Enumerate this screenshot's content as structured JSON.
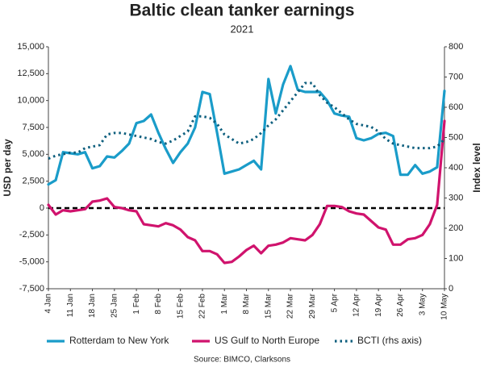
{
  "chart_data": {
    "type": "line",
    "title": "Baltic clean tanker earnings",
    "subtitle": "2021",
    "y_label": "USD per day",
    "y2_label": "Index level",
    "source": "Source: BIMCO, Clarksons",
    "categories": [
      "4 Jan",
      null,
      null,
      "11 Jan",
      null,
      null,
      "18 Jan",
      null,
      null,
      "25 Jan",
      null,
      null,
      "1 Feb",
      null,
      null,
      "8 Feb",
      null,
      null,
      "15 Feb",
      null,
      null,
      "22 Feb",
      null,
      null,
      "1 Mar",
      null,
      null,
      "8 Mar",
      null,
      null,
      "15 Mar",
      null,
      null,
      "22 Mar",
      null,
      null,
      "29 Mar",
      null,
      null,
      "5 Apr",
      null,
      null,
      "12 Apr",
      null,
      null,
      "19 Apr",
      null,
      null,
      "26 Apr",
      null,
      null,
      "3 May",
      null,
      null,
      "10 May"
    ],
    "series": [
      {
        "name": "Rotterdam to New York",
        "color": "#1a9cc9",
        "style": "solid",
        "axis": "y",
        "values": [
          2200,
          2600,
          5200,
          5100,
          5000,
          5200,
          3700,
          3900,
          4800,
          4700,
          5300,
          6000,
          7900,
          8100,
          8700,
          7000,
          5500,
          4200,
          5200,
          6000,
          7500,
          10800,
          10600,
          7000,
          3200,
          3400,
          3600,
          4000,
          4400,
          3600,
          12000,
          8800,
          11500,
          13200,
          11000,
          10800,
          10800,
          10800,
          10000,
          8800,
          8600,
          8500,
          6500,
          6300,
          6500,
          6900,
          7000,
          6700,
          3100,
          3100,
          4000,
          3200,
          3400,
          3800,
          10900
        ]
      },
      {
        "name": "US Gulf to North Europe",
        "color": "#d0136d",
        "style": "solid",
        "axis": "y",
        "values": [
          300,
          -600,
          -200,
          -300,
          -200,
          -100,
          600,
          700,
          900,
          100,
          0,
          -200,
          -300,
          -1500,
          -1600,
          -1700,
          -1400,
          -1600,
          -2000,
          -2700,
          -3000,
          -4000,
          -4000,
          -4300,
          -5100,
          -5000,
          -4500,
          -3900,
          -3500,
          -4200,
          -3500,
          -3400,
          -3200,
          -2800,
          -2900,
          -3000,
          -2500,
          -1500,
          200,
          200,
          100,
          -300,
          -500,
          -600,
          -1200,
          -1800,
          -2000,
          -3400,
          -3400,
          -2900,
          -2800,
          -2500,
          -1500,
          300,
          8100
        ]
      },
      {
        "name": "BCTI (rhs axis)",
        "color": "#0e5f7e",
        "style": "dotted",
        "axis": "y2",
        "values": [
          430,
          440,
          445,
          450,
          450,
          465,
          470,
          475,
          510,
          515,
          515,
          510,
          505,
          500,
          495,
          485,
          480,
          490,
          505,
          520,
          570,
          570,
          565,
          545,
          510,
          495,
          480,
          485,
          495,
          515,
          540,
          560,
          590,
          620,
          650,
          680,
          680,
          640,
          615,
          600,
          580,
          560,
          545,
          540,
          535,
          520,
          495,
          480,
          475,
          470,
          465,
          465,
          465,
          470,
          495
        ]
      }
    ],
    "ylim": [
      -7500,
      15000
    ],
    "yticks": [
      {
        "value": -7500,
        "label": "-7,500"
      },
      {
        "value": -5000,
        "label": "-5,000"
      },
      {
        "value": -2500,
        "label": "-2,500"
      },
      0,
      {
        "value": 2500,
        "label": "2,500"
      },
      {
        "value": 5000,
        "label": "5,000"
      },
      {
        "value": 7500,
        "label": "7,500"
      },
      {
        "value": 10000,
        "label": "10,000"
      },
      {
        "value": 12500,
        "label": "12,500"
      },
      {
        "value": 15000,
        "label": "15,000"
      }
    ],
    "y2lim": [
      0,
      800
    ],
    "y2ticks": [
      0,
      100,
      200,
      300,
      400,
      500,
      600,
      700,
      800
    ],
    "zero_line": true,
    "legend": "bottom"
  }
}
